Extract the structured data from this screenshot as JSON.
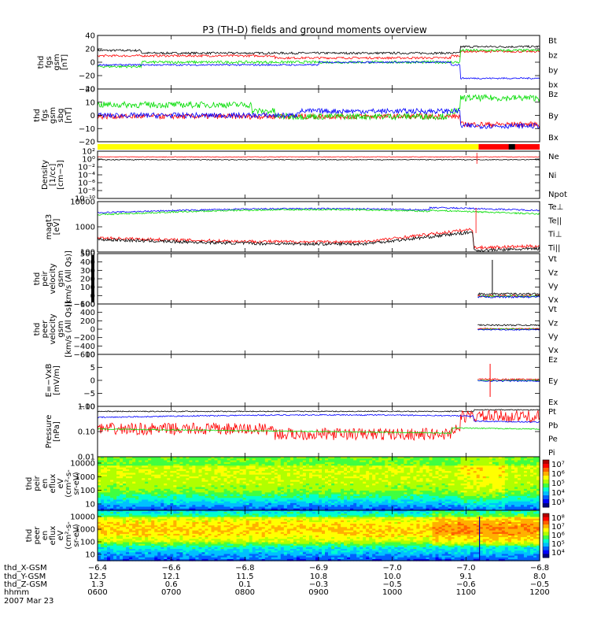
{
  "title": "P3 (TH-D) fields and ground moments overview",
  "colors": {
    "black": "#000000",
    "red": "#ff0000",
    "green": "#00dd00",
    "blue": "#0000ff",
    "yellow": "#ffff00"
  },
  "chart_data": [
    {
      "type": "line",
      "id": "fgs-gsm",
      "ylabel": [
        "thd",
        "fgs",
        "gsm",
        "[nT]"
      ],
      "yticks": [
        "40",
        "20",
        "0",
        "−20",
        "−40"
      ],
      "ylim": [
        -40,
        40
      ],
      "legend": [
        "Bt",
        "bz",
        "by",
        "bx"
      ],
      "legend_colors": [
        "#000000",
        "#ff0000",
        "#00dd00",
        "#0000ff"
      ]
    },
    {
      "type": "line",
      "id": "fgs-gsm-fac",
      "ylabel": [
        "thd",
        "fgs",
        "gsm",
        "sbg",
        "[nT]"
      ],
      "yticks": [
        "20",
        "10",
        "0",
        "−10",
        "−20"
      ],
      "ylim": [
        -25,
        20
      ],
      "legend": [
        "Bz",
        "By",
        "Bx"
      ],
      "legend_colors": [
        "#ff0000",
        "#00dd00",
        "#0000ff"
      ]
    },
    {
      "type": "line",
      "id": "density",
      "ylabel": [
        "Density",
        "[1/cc]",
        "[cm−3]"
      ],
      "yticks": [
        "10²",
        "10⁰",
        "10⁻²",
        "10⁻⁴",
        "10⁻⁶",
        "10⁻⁸",
        "10⁻¹⁰"
      ],
      "ylim_log": [
        -11,
        2.5
      ],
      "legend": [
        "Ne",
        "Ni",
        "Npot"
      ],
      "legend_colors": [
        "#ff0000",
        "#000000",
        "#0000ff"
      ]
    },
    {
      "type": "line",
      "id": "temperature",
      "ylabel": [
        "magt3",
        "[eV]"
      ],
      "yticks": [
        "10000",
        "1000",
        "100"
      ],
      "ylim_log": [
        1.5,
        4.1
      ],
      "legend": [
        "Te⊥",
        "Te||",
        "Ti⊥",
        "Ti||"
      ],
      "legend_colors": [
        "#ff0000",
        "#000000",
        "#0000ff",
        "#00dd00"
      ]
    },
    {
      "type": "line",
      "id": "peir-velocity",
      "ylabel": [
        "thd",
        "peir",
        "velocity",
        "gsm",
        "[km/s (All Qs)]"
      ],
      "yticks": [
        "500",
        "400",
        "300",
        "200",
        "100",
        "0",
        "−100"
      ],
      "ylim": [
        -100,
        500
      ],
      "legend": [
        "Vt",
        "Vz",
        "Vy",
        "Vx"
      ],
      "legend_colors": [
        "#000000",
        "#ff0000",
        "#00dd00",
        "#0000ff"
      ]
    },
    {
      "type": "line",
      "id": "peer-velocity",
      "ylabel": [
        "thd",
        "peer",
        "velocity",
        "gsm",
        "[km/s (All Qs)]"
      ],
      "yticks": [
        "600",
        "400",
        "200",
        "0",
        "−200",
        "−400",
        "−600"
      ],
      "ylim": [
        -600,
        600
      ],
      "legend": [
        "Vt",
        "Vz",
        "Vy",
        "Vx"
      ],
      "legend_colors": [
        "#000000",
        "#ff0000",
        "#00dd00",
        "#0000ff"
      ]
    },
    {
      "type": "line",
      "id": "efield",
      "ylabel": [
        "E=−VxB",
        "[mV/m]"
      ],
      "yticks": [
        "10",
        "5",
        "0",
        "−5",
        "−10"
      ],
      "ylim": [
        -12,
        12
      ],
      "legend": [
        "Ez",
        "Ey",
        "Ex"
      ],
      "legend_colors": [
        "#ff0000",
        "#00dd00",
        "#0000ff"
      ]
    },
    {
      "type": "line",
      "id": "pressure",
      "ylabel": [
        "Pressure",
        "[nPa]"
      ],
      "yticks": [
        "1.00",
        "0.10",
        "0.01"
      ],
      "ylim_log": [
        -2,
        0.1
      ],
      "legend": [
        "Pt",
        "Pb",
        "Pe",
        "Pi"
      ],
      "legend_colors": [
        "#000000",
        "#ff0000",
        "#00dd00",
        "#0000ff"
      ]
    },
    {
      "type": "heatmap",
      "id": "peir-spec",
      "ylabel": [
        "thd",
        "peir",
        "en",
        "eflux",
        "eV",
        "(cm²-s-",
        "sr-eV)"
      ],
      "yticks": [
        "10000",
        "1000",
        "100",
        "10"
      ],
      "colorbar": [
        "10⁷",
        "10⁶",
        "10⁵",
        "10⁴",
        "10³"
      ]
    },
    {
      "type": "heatmap",
      "id": "peer-spec",
      "ylabel": [
        "thd",
        "peer",
        "en",
        "eflux",
        "eV",
        "(cm²-s-",
        "sr-eV)"
      ],
      "yticks": [
        "10000",
        "1000",
        "100",
        "10"
      ],
      "colorbar": [
        "10⁸",
        "10⁷",
        "10⁶",
        "10⁵",
        "10⁴"
      ]
    }
  ],
  "xaxis": {
    "rows": [
      {
        "label": "thd_X-GSM",
        "values": [
          "−6.4",
          "−6.6",
          "−6.8",
          "−6.9",
          "−7.0",
          "−7.0",
          "−6.8"
        ]
      },
      {
        "label": "thd_Y-GSM",
        "values": [
          "12.5",
          "12.1",
          "11.5",
          "10.8",
          "10.0",
          "9.1",
          "8.0"
        ]
      },
      {
        "label": "thd_Z-GSM",
        "values": [
          "1.3",
          "0.6",
          "0.1",
          "−0.3",
          "−0.5",
          "−0.6",
          "−0.5"
        ]
      },
      {
        "label": "hhmm",
        "values": [
          "0600",
          "0700",
          "0800",
          "0900",
          "1000",
          "1100",
          "1200"
        ]
      }
    ],
    "date": "2007 Mar 23"
  }
}
